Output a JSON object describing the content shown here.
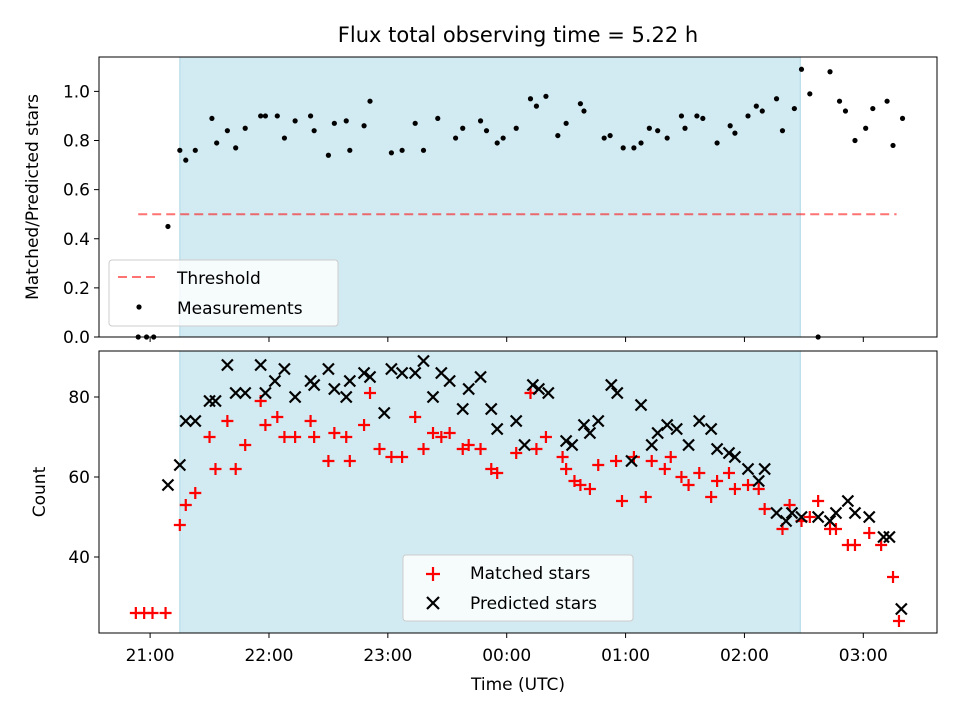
{
  "title": "Flux total observing time = 5.22 h",
  "colors": {
    "shade": "#add8e6",
    "threshold": "#ff0000",
    "measurement": "#000000",
    "matched": "#ff0000",
    "predicted": "#000000"
  },
  "chart_data": [
    {
      "type": "scatter",
      "ylabel": "Matched/Predicted stars",
      "ylim": [
        0,
        1.14
      ],
      "yticks": [
        0.0,
        0.2,
        0.4,
        0.6,
        0.8,
        1.0
      ],
      "ytick_labels": [
        "0.0",
        "0.2",
        "0.4",
        "0.6",
        "0.8",
        "1.0"
      ],
      "xlim_hours": [
        20.57,
        27.62
      ],
      "shaded_span_hours": [
        21.25,
        26.47
      ],
      "threshold": {
        "name": "Threshold",
        "value": 0.5,
        "x_start": 20.9,
        "x_end": 27.28
      },
      "legend": {
        "position": "lower left",
        "entries": [
          "Threshold",
          "Measurements"
        ]
      },
      "series": [
        {
          "name": "Measurements",
          "x": [
            20.9,
            20.97,
            21.03,
            21.15,
            21.25,
            21.3,
            21.38,
            21.52,
            21.56,
            21.65,
            21.72,
            21.8,
            21.93,
            21.97,
            22.07,
            22.13,
            22.22,
            22.35,
            22.38,
            22.5,
            22.55,
            22.65,
            22.68,
            22.8,
            22.85,
            23.03,
            23.12,
            23.23,
            23.3,
            23.42,
            23.57,
            23.63,
            23.78,
            23.83,
            23.92,
            23.97,
            24.08,
            24.2,
            24.25,
            24.33,
            24.43,
            24.5,
            24.62,
            24.65,
            24.82,
            24.87,
            24.98,
            25.07,
            25.13,
            25.2,
            25.27,
            25.35,
            25.47,
            25.5,
            25.6,
            25.65,
            25.77,
            25.88,
            25.92,
            26.03,
            26.1,
            26.15,
            26.27,
            26.32,
            26.42,
            26.48,
            26.55,
            26.62,
            26.72,
            26.8,
            26.85,
            26.93,
            27.02,
            27.08,
            27.2,
            27.25,
            27.33
          ],
          "y": [
            0.0,
            0.0,
            0.0,
            0.45,
            0.76,
            0.72,
            0.76,
            0.89,
            0.79,
            0.84,
            0.77,
            0.85,
            0.9,
            0.9,
            0.9,
            0.81,
            0.88,
            0.9,
            0.84,
            0.74,
            0.87,
            0.88,
            0.76,
            0.86,
            0.96,
            0.75,
            0.76,
            0.87,
            0.76,
            0.89,
            0.81,
            0.85,
            0.88,
            0.84,
            0.79,
            0.81,
            0.85,
            0.97,
            0.94,
            0.98,
            0.82,
            0.87,
            0.95,
            0.92,
            0.81,
            0.82,
            0.77,
            0.77,
            0.79,
            0.85,
            0.84,
            0.81,
            0.9,
            0.85,
            0.9,
            0.89,
            0.79,
            0.86,
            0.83,
            0.9,
            0.94,
            0.92,
            0.97,
            0.84,
            0.93,
            1.09,
            0.99,
            0.0,
            1.08,
            0.96,
            0.92,
            0.8,
            0.85,
            0.93,
            0.96,
            0.78,
            0.89
          ]
        }
      ]
    },
    {
      "type": "scatter",
      "xlabel": "Time (UTC)",
      "ylabel": "Count",
      "ylim": [
        21,
        91.5
      ],
      "yticks": [
        40,
        60,
        80
      ],
      "ytick_labels": [
        "40",
        "60",
        "80"
      ],
      "xlim_hours": [
        20.57,
        27.62
      ],
      "xticks_hours": [
        21,
        22,
        23,
        24,
        25,
        26,
        27
      ],
      "xtick_labels": [
        "21:00",
        "22:00",
        "23:00",
        "00:00",
        "01:00",
        "02:00",
        "03:00"
      ],
      "shaded_span_hours": [
        21.25,
        26.47
      ],
      "legend": {
        "position": "lower center",
        "entries": [
          "Matched stars",
          "Predicted stars"
        ]
      },
      "series": [
        {
          "name": "Matched stars",
          "marker": "plus",
          "x": [
            20.88,
            20.95,
            21.02,
            21.13,
            21.25,
            21.3,
            21.38,
            21.5,
            21.55,
            21.65,
            21.72,
            21.8,
            21.93,
            21.97,
            22.07,
            22.13,
            22.22,
            22.35,
            22.38,
            22.5,
            22.55,
            22.65,
            22.68,
            22.8,
            22.85,
            22.93,
            23.03,
            23.12,
            23.23,
            23.3,
            23.38,
            23.45,
            23.52,
            23.63,
            23.68,
            23.78,
            23.87,
            23.92,
            24.08,
            24.2,
            24.25,
            24.33,
            24.47,
            24.5,
            24.57,
            24.62,
            24.7,
            24.77,
            24.92,
            24.97,
            25.07,
            25.17,
            25.22,
            25.33,
            25.38,
            25.47,
            25.53,
            25.62,
            25.72,
            25.77,
            25.87,
            25.92,
            26.03,
            26.12,
            26.17,
            26.32,
            26.38,
            26.48,
            26.55,
            26.62,
            26.72,
            26.77,
            26.87,
            26.93,
            27.05,
            27.15,
            27.25,
            27.3
          ],
          "y": [
            26,
            26,
            26,
            26,
            48,
            53,
            56,
            70,
            62,
            74,
            62,
            68,
            79,
            73,
            75,
            70,
            70,
            74,
            70,
            64,
            71,
            70,
            64,
            73,
            81,
            67,
            65,
            65,
            75,
            67,
            71,
            70,
            71,
            67,
            68,
            67,
            62,
            61,
            66,
            81,
            67,
            70,
            65,
            62,
            59,
            58,
            57,
            63,
            64,
            54,
            65,
            55,
            64,
            62,
            65,
            60,
            58,
            61,
            55,
            59,
            61,
            57,
            58,
            57,
            52,
            47,
            53,
            49,
            50,
            54,
            47,
            47,
            43,
            43,
            46,
            43,
            35,
            24
          ]
        },
        {
          "name": "Predicted stars",
          "marker": "x",
          "x": [
            21.15,
            21.25,
            21.3,
            21.38,
            21.5,
            21.55,
            21.65,
            21.72,
            21.8,
            21.93,
            21.97,
            22.05,
            22.13,
            22.22,
            22.35,
            22.38,
            22.5,
            22.55,
            22.65,
            22.68,
            22.8,
            22.85,
            22.97,
            23.03,
            23.12,
            23.23,
            23.3,
            23.38,
            23.45,
            23.52,
            23.63,
            23.68,
            23.78,
            23.87,
            23.92,
            24.08,
            24.15,
            24.22,
            24.27,
            24.35,
            24.5,
            24.55,
            24.65,
            24.7,
            24.77,
            24.88,
            24.93,
            25.05,
            25.13,
            25.22,
            25.27,
            25.35,
            25.43,
            25.53,
            25.62,
            25.72,
            25.77,
            25.87,
            25.92,
            26.03,
            26.12,
            26.17,
            26.27,
            26.35,
            26.4,
            26.48,
            26.62,
            26.72,
            26.77,
            26.87,
            26.93,
            27.05,
            27.17,
            27.22,
            27.32
          ],
          "y": [
            58,
            63,
            74,
            74,
            79,
            79,
            88,
            81,
            81,
            88,
            81,
            84,
            87,
            80,
            84,
            83,
            87,
            82,
            80,
            84,
            86,
            85,
            76,
            87,
            86,
            86,
            89,
            80,
            86,
            84,
            77,
            82,
            85,
            77,
            72,
            74,
            68,
            83,
            82,
            81,
            69,
            68,
            73,
            71,
            74,
            83,
            81,
            64,
            78,
            68,
            71,
            73,
            72,
            68,
            74,
            72,
            67,
            66,
            65,
            62,
            59,
            62,
            51,
            49,
            51,
            50,
            50,
            49,
            51,
            54,
            51,
            50,
            45,
            45,
            27
          ]
        }
      ]
    }
  ]
}
